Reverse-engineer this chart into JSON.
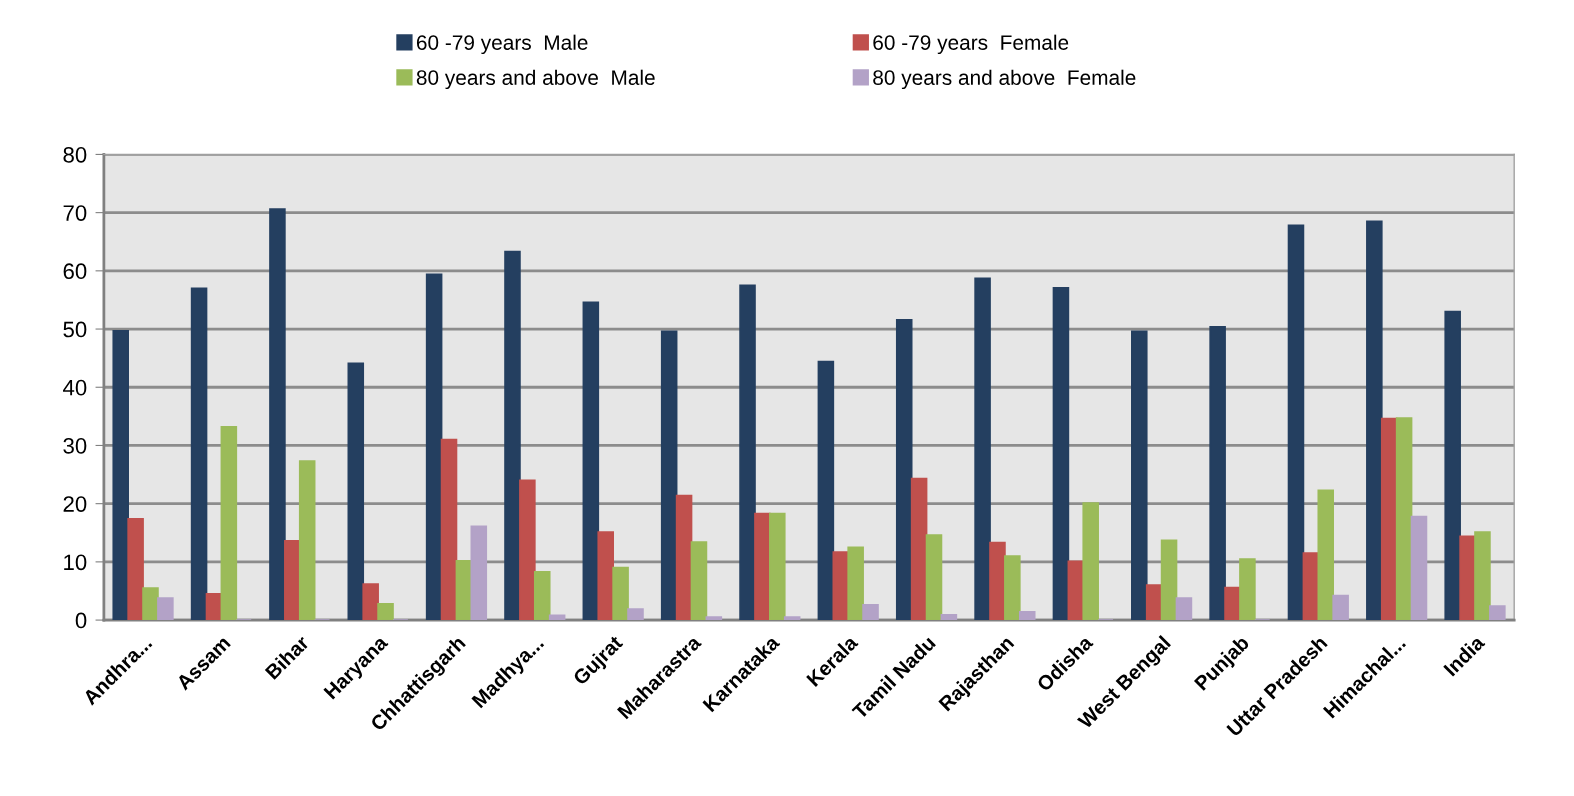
{
  "chart_data": {
    "type": "bar",
    "categories": [
      "Andhra...",
      "Assam",
      "Bihar",
      "Haryana",
      "Chhattisgarh",
      "Madhya...",
      "Gujrat",
      "Maharastra",
      "Karnataka",
      "Kerala",
      "Tamil Nadu",
      "Rajasthan",
      "Odisha",
      "West Bengal",
      "Punjab",
      "Uttar Pradesh",
      "Himachal...",
      "India"
    ],
    "series": [
      {
        "name": "60 -79 years  Male",
        "color": "#243f60",
        "values": [
          49.7,
          57.0,
          70.6,
          44.1,
          59.4,
          63.3,
          54.6,
          49.6,
          57.5,
          44.4,
          51.6,
          58.7,
          57.1,
          49.6,
          50.4,
          67.8,
          68.5,
          53.0
        ]
      },
      {
        "name": "60 -79 years  Female",
        "color": "#c0504d",
        "values": [
          17.4,
          4.5,
          13.6,
          6.2,
          31.0,
          24.0,
          15.1,
          21.4,
          18.3,
          11.7,
          24.3,
          13.3,
          10.1,
          6.0,
          5.6,
          11.5,
          34.6,
          14.4
        ]
      },
      {
        "name": "80 years and above  Male",
        "color": "#9bbb59",
        "values": [
          5.5,
          33.2,
          27.3,
          2.8,
          10.2,
          8.3,
          9.0,
          13.4,
          18.3,
          12.5,
          14.6,
          11.0,
          20.1,
          13.7,
          10.5,
          22.3,
          34.7,
          15.1
        ]
      },
      {
        "name": "80 years and above  Female",
        "color": "#b3a2c7",
        "values": [
          3.8,
          0,
          0,
          0,
          16.1,
          0.8,
          1.9,
          0.5,
          0.5,
          2.6,
          0.9,
          1.4,
          0,
          3.8,
          0,
          4.2,
          17.8,
          2.4
        ]
      }
    ],
    "ylim": [
      0,
      80
    ],
    "yticks": [
      0,
      10,
      20,
      30,
      40,
      50,
      60,
      70,
      80
    ],
    "grid": "y",
    "legend": "top"
  }
}
